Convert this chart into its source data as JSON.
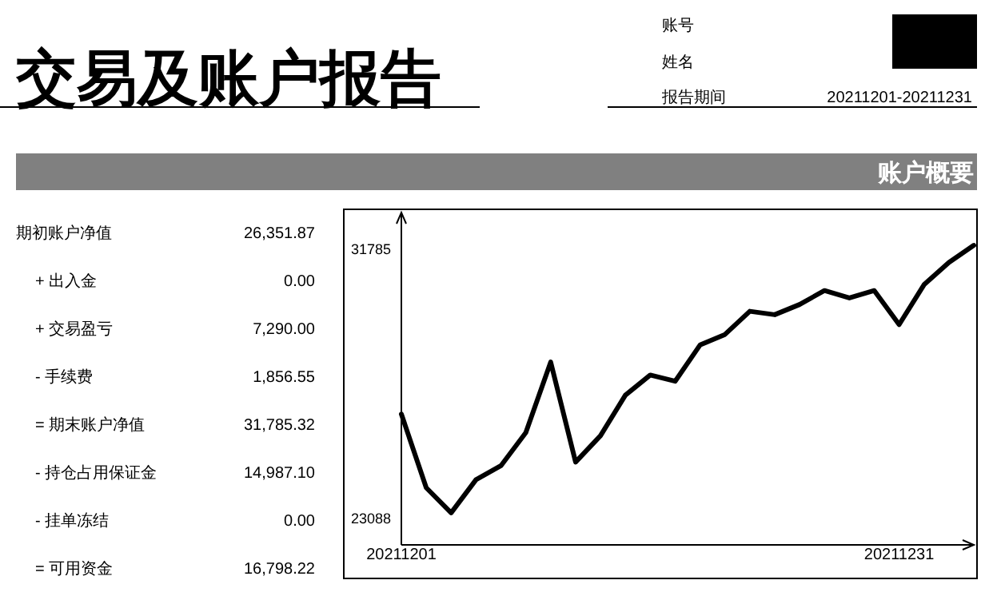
{
  "chart_data": [
    {
      "type": "other",
      "title": "交易及账户报告",
      "subtitle": "账户概要",
      "annotations": [
        "账号",
        "姓名",
        "报告期间",
        "20211201-20211231",
        "期初账户净值",
        "26,351.87",
        "+ 出入金",
        "0.00",
        "+ 交易盈亏",
        "7,290.00",
        "- 手续费",
        "1,856.55",
        "= 期末账户净值",
        "31,785.32",
        "- 持仓占用保证金",
        "14,987.10",
        "- 挂单冻结",
        "0.00",
        "= 可用资金",
        "16,798.22"
      ]
    },
    {
      "type": "line",
      "color": "#000000",
      "categories": [
        "20211201",
        null,
        null,
        null,
        null,
        null,
        null,
        null,
        null,
        null,
        null,
        null,
        null,
        null,
        null,
        null,
        null,
        null,
        null,
        null,
        "20211231",
        null,
        null,
        null
      ],
      "values": [
        26450,
        24070,
        23260,
        24330,
        24780,
        25850,
        28130,
        24900,
        25750,
        27060,
        27710,
        27510,
        28680,
        29020,
        29770,
        29660,
        29990,
        30440,
        30200,
        30440,
        29340,
        30630,
        31350,
        31900
      ],
      "ylim": [
        22225,
        32960
      ],
      "yticks": [
        23088,
        31785
      ]
    }
  ]
}
